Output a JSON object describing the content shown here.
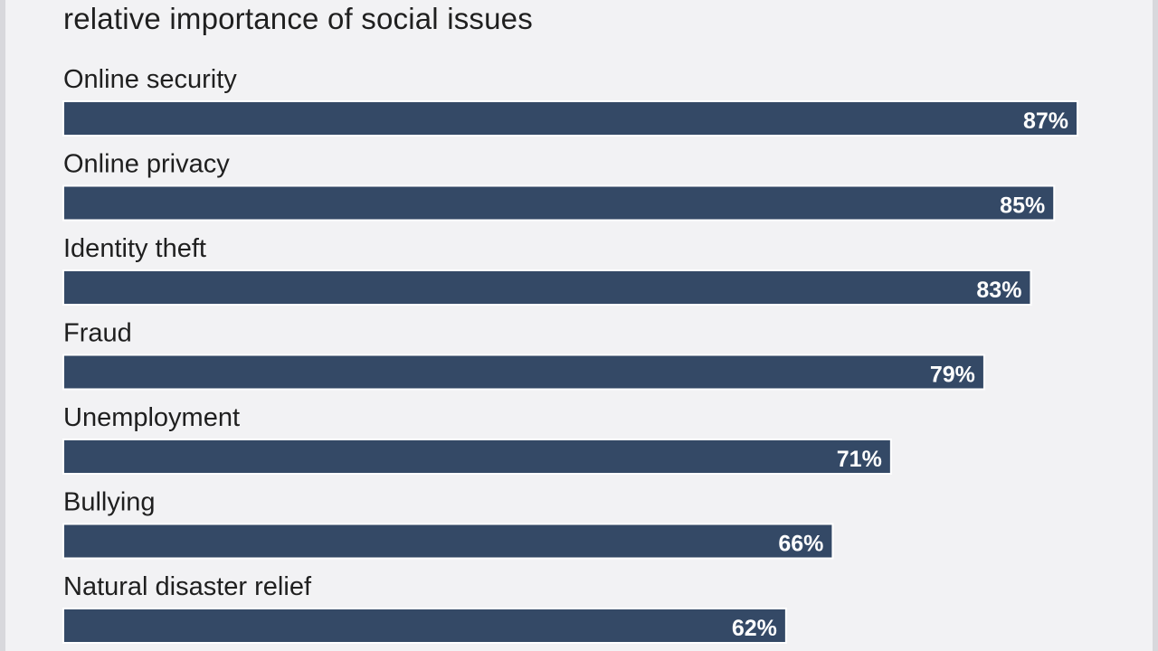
{
  "chart_data": {
    "type": "bar",
    "orientation": "horizontal",
    "title": "relative importance of social issues",
    "categories": [
      "Online security",
      "Online privacy",
      "Identity theft",
      "Fraud",
      "Unemployment",
      "Bullying",
      "Natural disaster relief"
    ],
    "values": [
      87,
      85,
      83,
      79,
      71,
      66,
      62
    ],
    "value_labels": [
      "87%",
      "85%",
      "83%",
      "79%",
      "71%",
      "66%",
      "62%"
    ],
    "unit": "%",
    "bar_color": "#344966",
    "label_color": "#ffffff",
    "grid": false,
    "legend": "none"
  }
}
